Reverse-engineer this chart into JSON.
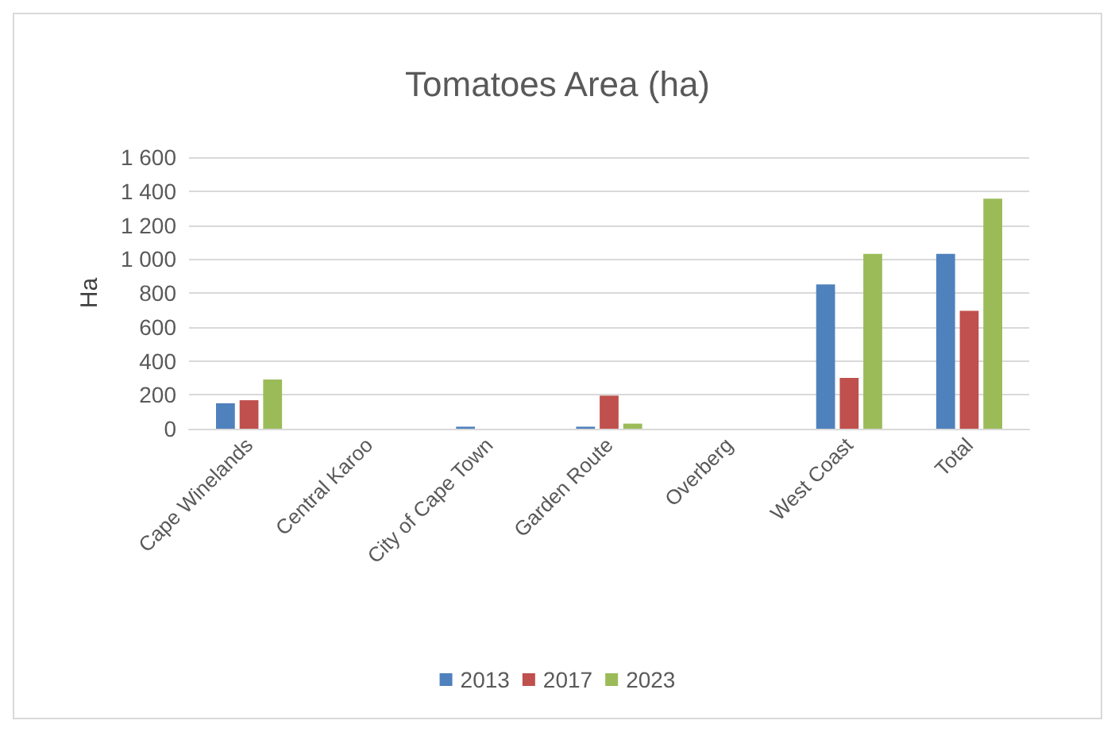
{
  "chart_data": {
    "type": "bar",
    "title": "Tomatoes Area (ha)",
    "ylabel": "Ha",
    "categories": [
      "Cape Winelands",
      "Central Karoo",
      "City of Cape Town",
      "Garden Route",
      "Overberg",
      "West Coast",
      "Total"
    ],
    "series": [
      {
        "name": "2013",
        "color": "#4f81bd",
        "values": [
          150,
          0,
          12,
          12,
          0,
          850,
          1030
        ]
      },
      {
        "name": "2017",
        "color": "#c0504d",
        "values": [
          168,
          0,
          0,
          195,
          0,
          300,
          695
        ]
      },
      {
        "name": "2023",
        "color": "#9bbb59",
        "values": [
          290,
          0,
          0,
          30,
          0,
          1030,
          1355
        ]
      }
    ],
    "ylim": [
      0,
      1600
    ],
    "yticks": [
      0,
      200,
      400,
      600,
      800,
      {
        "value": 1000,
        "label": "1 000"
      },
      {
        "value": 1200,
        "label": "1 200"
      },
      {
        "value": 1400,
        "label": "1 400"
      },
      {
        "value": 1600,
        "label": "1 600"
      }
    ],
    "grid": "y",
    "legend": "bottom"
  }
}
